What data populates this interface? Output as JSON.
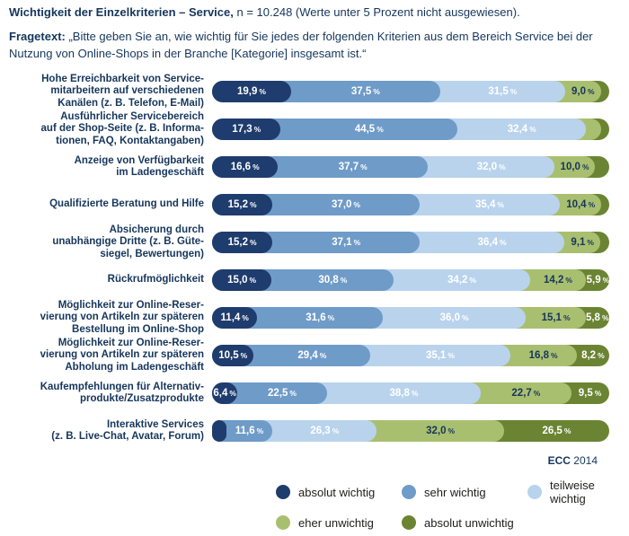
{
  "header": {
    "title_bold": "Wichtigkeit der Einzelkriterien – Service,",
    "title_rest": " n = 10.248 (Werte unter 5 Prozent nicht ausgewiesen).",
    "fragetext_label": "Fragetext:",
    "fragetext_rest": " „Bitte geben Sie an, wie wichtig für Sie jedes der folgenden Kriterien aus dem Bereich Service bei der Nutzung von Online-Shops in der Branche [Kategorie] insgesamt ist.“"
  },
  "source": {
    "bold": "ECC",
    "rest": " 2014"
  },
  "colors": {
    "segment_fills": [
      "#1e3c6d",
      "#6f9bc8",
      "#b9d3ed",
      "#a9bf70",
      "#6b8433"
    ],
    "segment_label_colors": [
      "#ffffff",
      "#ffffff",
      "#ffffff",
      "#16365c",
      "#ffffff"
    ],
    "text_navy": "#16365c",
    "legend_text": "#1d1d1b"
  },
  "chart_data": {
    "type": "bar",
    "subtype": "horizontal-stacked",
    "unit": "%",
    "xlim": [
      0,
      100
    ],
    "note": "Werte unter 5 Prozent nicht ausgewiesen; unbeschriftete Segmentwerte sind aus Segmentbreiten geschätzt",
    "series_names": [
      "absolut wichtig",
      "sehr wichtig",
      "teilweise wichtig",
      "eher unwichtig",
      "absolut unwichtig"
    ],
    "rows": [
      {
        "category_lines": "Hohe Erreichbarkeit von Service-\nmitarbeitern auf verschiedenen\nKanälen (z. B. Telefon, E-Mail)",
        "values": [
          19.9,
          37.5,
          31.5,
          9.0,
          2.1
        ],
        "labels": [
          "19,9",
          "37,5",
          "31,5",
          "9,0",
          null
        ]
      },
      {
        "category_lines": "Ausführlicher Servicebereich\nauf der Shop-Seite (z. B. Informa-\ntionen, FAQ, Kontaktangaben)",
        "values": [
          17.3,
          44.5,
          32.4,
          3.8,
          2.0
        ],
        "labels": [
          "17,3",
          "44,5",
          "32,4",
          null,
          null
        ]
      },
      {
        "category_lines": "Anzeige von Verfügbarkeit\nim Ladengeschäft",
        "values": [
          16.6,
          37.7,
          32.0,
          10.0,
          3.7
        ],
        "labels": [
          "16,6",
          "37,7",
          "32,0",
          "10,0",
          null
        ]
      },
      {
        "category_lines": "Qualifizierte Beratung und Hilfe",
        "values": [
          15.2,
          37.0,
          35.4,
          10.4,
          2.0
        ],
        "labels": [
          "15,2",
          "37,0",
          "35,4",
          "10,4",
          null
        ]
      },
      {
        "category_lines": "Absicherung durch\nunabhängige Dritte (z. B. Güte-\nsiegel, Bewertungen)",
        "values": [
          15.2,
          37.1,
          36.4,
          9.1,
          2.2
        ],
        "labels": [
          "15,2",
          "37,1",
          "36,4",
          "9,1",
          null
        ]
      },
      {
        "category_lines": "Rückrufmöglichkeit",
        "values": [
          15.0,
          30.8,
          34.2,
          14.2,
          5.9
        ],
        "labels": [
          "15,0",
          "30,8",
          "34,2",
          "14,2",
          "5,9"
        ]
      },
      {
        "category_lines": "Möglichkeit zur Online-Reser-\nvierung von Artikeln zur späteren\nBestellung im Online-Shop",
        "values": [
          11.4,
          31.6,
          36.0,
          15.1,
          5.8
        ],
        "labels": [
          "11,4",
          "31,6",
          "36,0",
          "15,1",
          "5,8"
        ]
      },
      {
        "category_lines": "Möglichkeit zur Online-Reser-\nvierung von Artikeln zur späteren\nAbholung im Ladengeschäft",
        "values": [
          10.5,
          29.4,
          35.1,
          16.8,
          8.2
        ],
        "labels": [
          "10,5",
          "29,4",
          "35,1",
          "16,8",
          "8,2"
        ]
      },
      {
        "category_lines": "Kaufempfehlungen für Alternativ-\nprodukte/Zusatzprodukte",
        "values": [
          6.4,
          22.5,
          38.8,
          22.7,
          9.5
        ],
        "labels": [
          "6,4",
          "22,5",
          "38,8",
          "22,7",
          "9,5"
        ]
      },
      {
        "category_lines": "Interaktive Services\n(z. B. Live-Chat, Avatar, Forum)",
        "values": [
          3.6,
          11.6,
          26.3,
          32.0,
          26.5
        ],
        "labels": [
          null,
          "11,6",
          "26,3",
          "32,0",
          "26,5"
        ]
      }
    ]
  },
  "legend": {
    "items": [
      {
        "label": "absolut wichtig",
        "color": "#1e3c6d"
      },
      {
        "label": "sehr wichtig",
        "color": "#6f9bc8"
      },
      {
        "label": "teilweise wichtig",
        "color": "#b9d3ed"
      },
      {
        "label": "eher unwichtig",
        "color": "#a9bf70"
      },
      {
        "label": "absolut unwichtig",
        "color": "#6b8433"
      }
    ]
  }
}
